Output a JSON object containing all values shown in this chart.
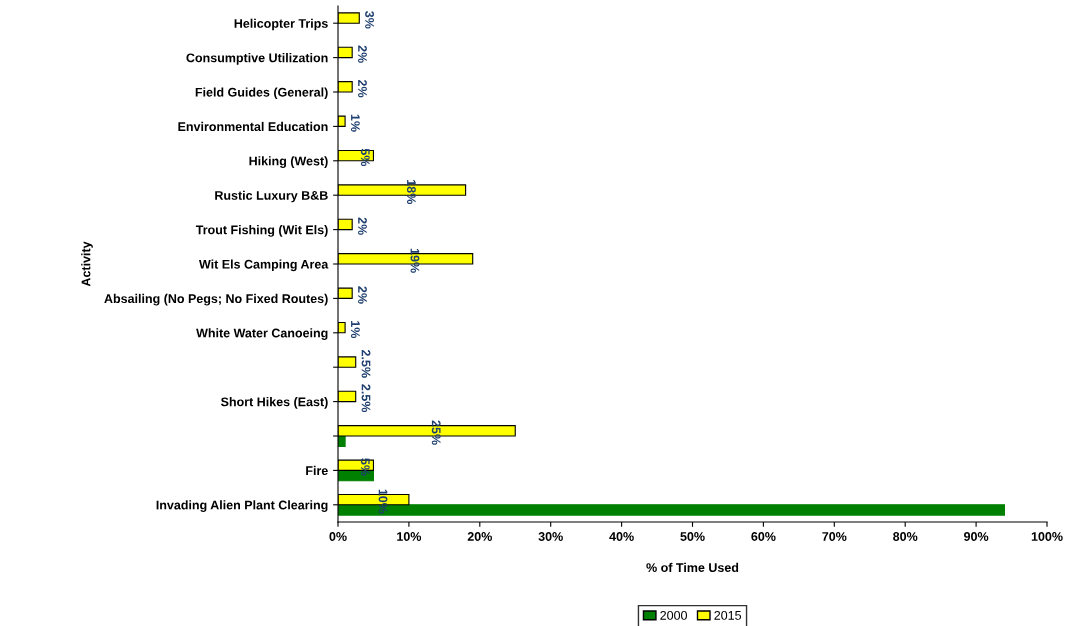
{
  "chart_data": {
    "type": "bar",
    "orientation": "horizontal",
    "xlabel": "% of Time Used",
    "ylabel": "Activity",
    "categories": [
      "Helicopter Trips",
      "Consumptive Utilization",
      "Field Guides (General)",
      "Environmental Education",
      "Hiking (West)",
      "Rustic Luxury B&B",
      "Trout Fishing (Wit Els)",
      "Wit Els Camping Area",
      "Absailing (No Pegs; No Fixed Routes)",
      "White Water Canoeing",
      null,
      "Short Hikes (East)",
      null,
      "Fire",
      "Invading Alien Plant Clearing"
    ],
    "series": [
      {
        "name": "2000",
        "color": "#008000",
        "values": [
          null,
          null,
          null,
          null,
          null,
          null,
          null,
          null,
          null,
          null,
          null,
          null,
          1,
          5,
          94
        ]
      },
      {
        "name": "2015",
        "color": "#ffff00",
        "values": [
          3,
          2,
          2,
          1,
          5,
          18,
          2,
          19,
          2,
          1,
          2.5,
          2.5,
          25,
          5,
          10
        ],
        "value_labels": [
          "3%",
          "2%",
          "2%",
          "1%",
          "5%",
          "18%",
          "2%",
          "19%",
          "2%",
          "1%",
          "2.5%",
          "2.5%",
          "25%",
          "5%",
          "10%"
        ]
      }
    ],
    "xlim": [
      0,
      100
    ],
    "xticks": [
      {
        "value": 0,
        "label": "0%"
      },
      {
        "value": 10,
        "label": "10%"
      },
      {
        "value": 20,
        "label": "20%"
      },
      {
        "value": 30,
        "label": "30%"
      },
      {
        "value": 40,
        "label": "40%"
      },
      {
        "value": 50,
        "label": "50%"
      },
      {
        "value": 60,
        "label": "60%"
      },
      {
        "value": 70,
        "label": "70%"
      },
      {
        "value": 80,
        "label": "80%"
      },
      {
        "value": 90,
        "label": "90%"
      },
      {
        "value": 100,
        "label": "100%"
      }
    ],
    "grid": false,
    "legend": "bottom"
  }
}
